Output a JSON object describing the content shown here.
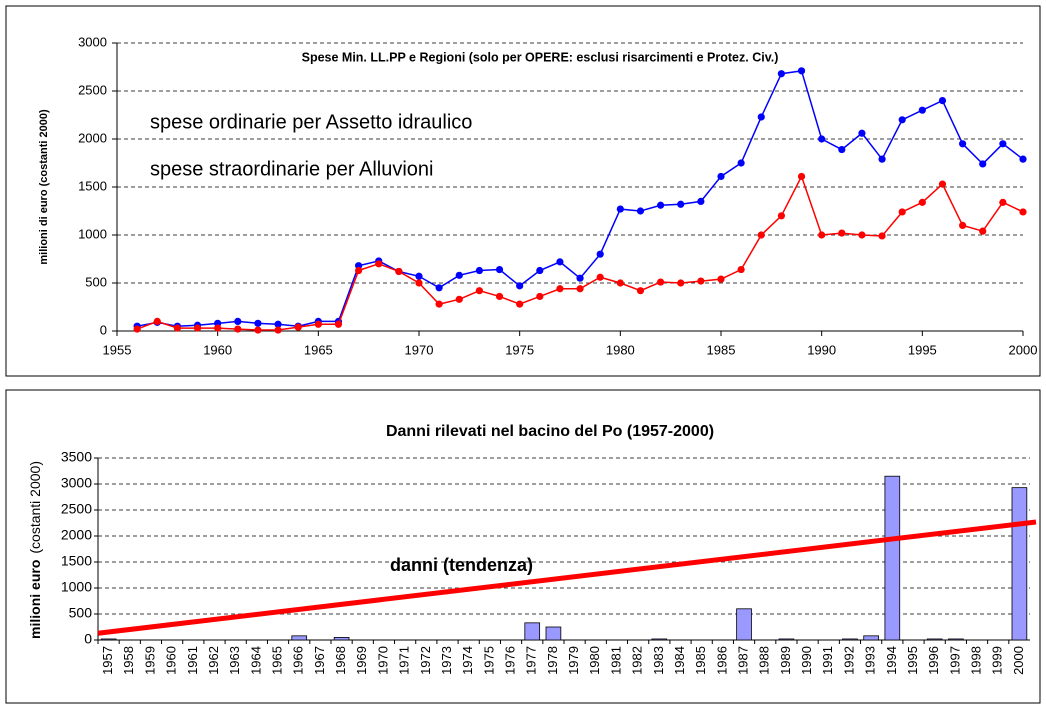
{
  "chart_data": [
    {
      "type": "line",
      "title": "Spese Min. LL.PP e Regioni (solo per OPERE: esclusi risarcimenti e Protez. Civ.)",
      "ylabel": "milioni di euro (costanti 2000)",
      "x": [
        1956,
        1957,
        1958,
        1959,
        1960,
        1961,
        1962,
        1963,
        1964,
        1965,
        1966,
        1967,
        1968,
        1969,
        1970,
        1971,
        1972,
        1973,
        1974,
        1975,
        1976,
        1977,
        1978,
        1979,
        1980,
        1981,
        1982,
        1983,
        1984,
        1985,
        1986,
        1987,
        1988,
        1989,
        1990,
        1991,
        1992,
        1993,
        1994,
        1995,
        1996,
        1997,
        1998,
        1999,
        2000
      ],
      "series": [
        {
          "name": "spese ordinarie per Assetto idraulico",
          "color": "#0000ff",
          "values": [
            50,
            90,
            50,
            60,
            80,
            100,
            80,
            70,
            50,
            100,
            100,
            680,
            730,
            620,
            570,
            450,
            580,
            630,
            640,
            470,
            630,
            720,
            550,
            800,
            1270,
            1250,
            1310,
            1320,
            1350,
            1610,
            1750,
            2230,
            2680,
            2710,
            2000,
            1890,
            2060,
            1790,
            2200,
            2300,
            2400,
            1950,
            1740,
            1950,
            1790
          ]
        },
        {
          "name": "spese straordinarie per Alluvioni",
          "color": "#ff0000",
          "values": [
            20,
            100,
            30,
            30,
            30,
            20,
            10,
            10,
            40,
            70,
            70,
            630,
            700,
            620,
            500,
            280,
            330,
            420,
            360,
            280,
            360,
            440,
            440,
            560,
            500,
            420,
            510,
            500,
            520,
            540,
            640,
            1000,
            1200,
            1610,
            1000,
            1020,
            1000,
            990,
            1240,
            1340,
            1530,
            1100,
            1040,
            1340,
            1240
          ]
        }
      ],
      "xlim": [
        1955,
        2000
      ],
      "xticks": [
        1955,
        1960,
        1965,
        1970,
        1975,
        1980,
        1985,
        1990,
        1995,
        2000
      ],
      "ylim": [
        0,
        3000
      ],
      "yticks": [
        0,
        500,
        1000,
        1500,
        2000,
        2500,
        3000
      ],
      "grid": true
    },
    {
      "type": "bar",
      "title": "Danni rilevati nel bacino del Po (1957-2000)",
      "ylabel": "milioni euro",
      "ylabel_note": "(costanti 2000)",
      "categories": [
        "1957",
        "1958",
        "1959",
        "1960",
        "1961",
        "1962",
        "1963",
        "1964",
        "1965",
        "1966",
        "1967",
        "1968",
        "1969",
        "1970",
        "1971",
        "1972",
        "1973",
        "1974",
        "1975",
        "1976",
        "1977",
        "1978",
        "1979",
        "1980",
        "1981",
        "1982",
        "1983",
        "1984",
        "1985",
        "1986",
        "1987",
        "1988",
        "1989",
        "1990",
        "1991",
        "1992",
        "1993",
        "1994",
        "1995",
        "1996",
        "1997",
        "1998",
        "1999",
        "2000"
      ],
      "values": [
        20,
        0,
        0,
        0,
        0,
        0,
        0,
        0,
        0,
        80,
        0,
        50,
        0,
        0,
        0,
        0,
        0,
        0,
        0,
        0,
        330,
        250,
        0,
        0,
        0,
        0,
        20,
        0,
        0,
        0,
        600,
        0,
        20,
        0,
        0,
        20,
        80,
        3150,
        0,
        20,
        20,
        0,
        0,
        2930
      ],
      "color": "#9999ff",
      "trend": {
        "label": "danni (tendenza)",
        "start": 130,
        "end": 2270,
        "color": "#ff0000"
      },
      "ylim": [
        0,
        3500
      ],
      "yticks": [
        0,
        500,
        1000,
        1500,
        2000,
        2500,
        3000,
        3500
      ],
      "grid": true
    }
  ]
}
